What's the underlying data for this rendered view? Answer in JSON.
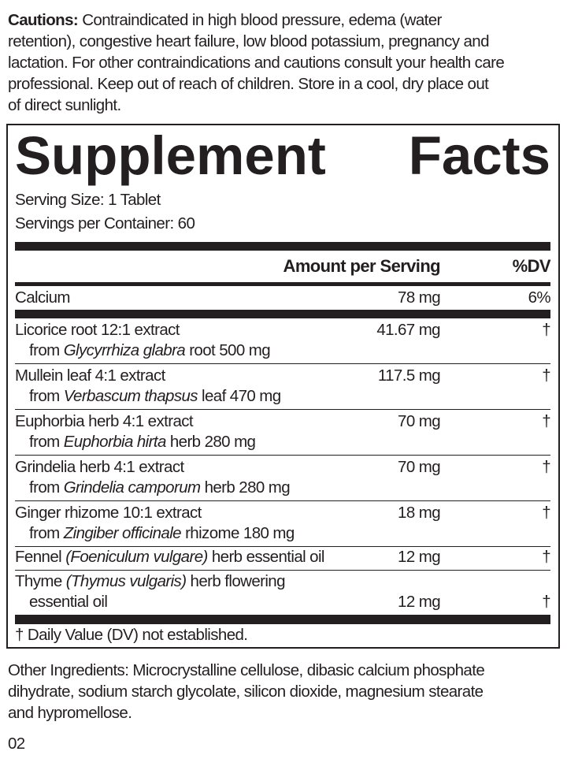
{
  "cautions": {
    "label": "Cautions:",
    "lines": [
      " Contraindicated in high blood pressure, edema (water",
      "retention), congestive heart failure, low blood potassium, pregnancy and",
      "lactation. For other contraindications and cautions consult your health care",
      "professional. Keep out of reach of children. Store in a cool, dry place out",
      "of direct sunlight."
    ]
  },
  "facts": {
    "title_word1": "Supplement",
    "title_word2": "Facts",
    "serving_size": "Serving Size: 1 Tablet",
    "servings_per_container": "Servings per Container: 60",
    "header_amount": "Amount per Serving",
    "header_dv": "%DV",
    "calcium": {
      "name": "Calcium",
      "amount": "78 mg",
      "dv": "6%"
    },
    "ingredients": [
      {
        "name": "Licorice root 12:1 extract",
        "from": "from ",
        "latin": "Glycyrrhiza glabra",
        "rest": " root 500 mg",
        "amount": "41.67 mg",
        "dv": "†"
      },
      {
        "name": "Mullein leaf 4:1 extract",
        "from": "from ",
        "latin": "Verbascum thapsus",
        "rest": " leaf 470 mg",
        "amount": "117.5 mg",
        "dv": "†"
      },
      {
        "name": "Euphorbia herb 4:1 extract",
        "from": "from ",
        "latin": "Euphorbia hirta",
        "rest": " herb 280 mg",
        "amount": "70 mg",
        "dv": "†"
      },
      {
        "name": "Grindelia herb 4:1 extract",
        "from": "from ",
        "latin": "Grindelia camporum",
        "rest": " herb 280 mg",
        "amount": "70 mg",
        "dv": "†"
      },
      {
        "name": "Ginger rhizome 10:1 extract",
        "from": "from ",
        "latin": "Zingiber officinale",
        "rest": " rhizome 180 mg",
        "amount": "18 mg",
        "dv": "†"
      }
    ],
    "fennel": {
      "pre": "Fennel ",
      "latin": "(Foeniculum vulgare)",
      "rest": " herb essential oil",
      "amount": "12 mg",
      "dv": "†"
    },
    "thyme": {
      "pre": "Thyme ",
      "latin": "(Thymus vulgaris)",
      "rest": " herb flowering",
      "line2": "essential oil",
      "amount": "12 mg",
      "dv": "†"
    },
    "footnote": "† Daily Value (DV) not established."
  },
  "other_ingredients": {
    "lines": [
      "Other Ingredients: Microcrystalline cellulose, dibasic calcium phosphate",
      "dihydrate, sodium starch glycolate, silicon dioxide, magnesium stearate",
      "and hypromellose."
    ]
  },
  "code": "02"
}
